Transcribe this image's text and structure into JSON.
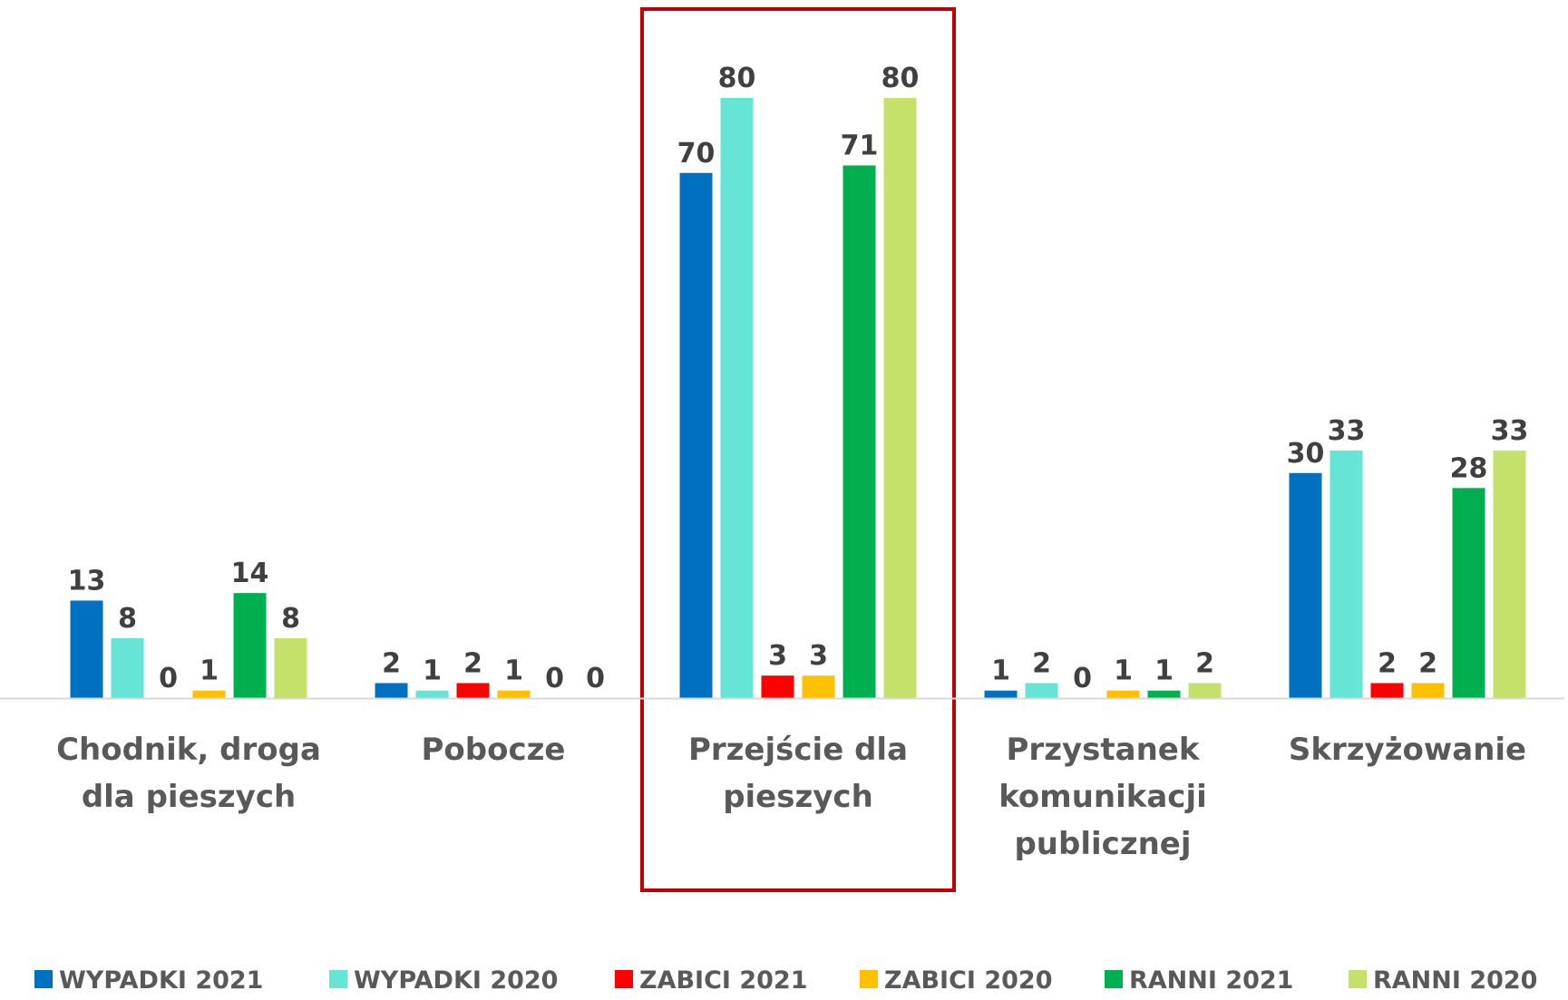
{
  "chart_data": {
    "type": "bar",
    "categories": [
      [
        "Chodnik, droga",
        "dla pieszych"
      ],
      [
        "Pobocze"
      ],
      [
        "Przejście dla",
        "pieszych"
      ],
      [
        "Przystanek",
        "komunikacji",
        "publicznej"
      ],
      [
        "Skrzyżowanie"
      ]
    ],
    "series": [
      {
        "name": "WYPADKI 2021",
        "color": "#0070C0",
        "values": [
          13,
          2,
          70,
          1,
          30
        ]
      },
      {
        "name": "WYPADKI 2020",
        "color": "#66E5D6",
        "values": [
          8,
          1,
          80,
          2,
          33
        ]
      },
      {
        "name": "ZABICI 2021",
        "color": "#FF0000",
        "values": [
          0,
          2,
          3,
          0,
          2
        ]
      },
      {
        "name": "ZABICI 2020",
        "color": "#FFC000",
        "values": [
          1,
          1,
          3,
          1,
          2
        ]
      },
      {
        "name": "RANNI 2021",
        "color": "#00B050",
        "values": [
          14,
          0,
          71,
          1,
          28
        ]
      },
      {
        "name": "RANNI 2020",
        "color": "#C5E16A",
        "values": [
          8,
          0,
          80,
          2,
          33
        ]
      }
    ],
    "ylim": [
      0,
      80
    ],
    "grid": false,
    "legend": "bottom",
    "highlight_category": 2,
    "highlight_color": "#C00000"
  }
}
